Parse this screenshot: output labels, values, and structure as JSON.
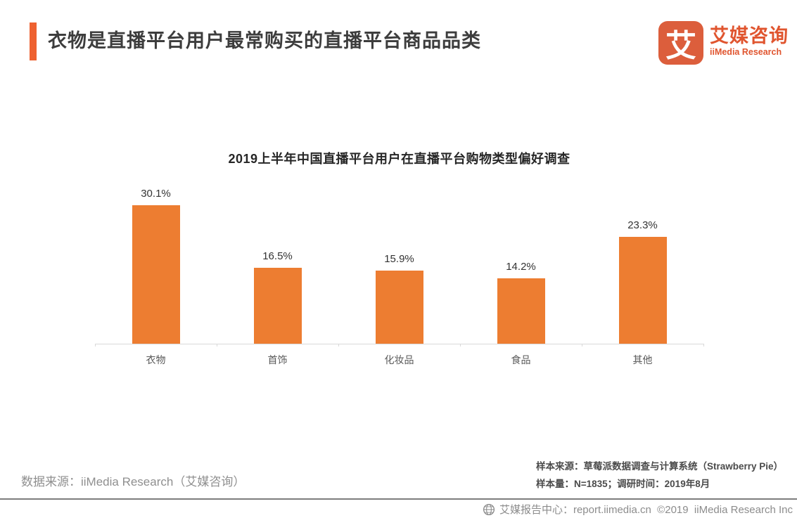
{
  "header": {
    "title": "衣物是直播平台用户最常购买的直播平台商品品类",
    "logo": {
      "glyph": "艾",
      "brand_cn": "艾媒咨询",
      "brand_en": "iiMedia Research"
    }
  },
  "chart_data": {
    "type": "bar",
    "title": "2019上半年中国直播平台用户在直播平台购物类型偏好调查",
    "categories": [
      "衣物",
      "首饰",
      "化妆品",
      "食品",
      "其他"
    ],
    "values": [
      30.1,
      16.5,
      15.9,
      14.2,
      23.3
    ],
    "value_labels": [
      "30.1%",
      "16.5%",
      "15.9%",
      "14.2%",
      "23.3%"
    ],
    "xlabel": "",
    "ylabel": "",
    "ylim": [
      0,
      32
    ],
    "grid": false,
    "legend": "none"
  },
  "footer": {
    "data_source": "数据来源：iiMedia Research（艾媒咨询）",
    "sample_source": "样本来源：草莓派数据调查与计算系统（Strawberry Pie）",
    "sample_info": "样本量：N=1835；调研时间：2019年8月",
    "report_center": "艾媒报告中心：report.iimedia.cn  ©2019  iiMedia Research Inc"
  },
  "colors": {
    "bar": "#ED7D31",
    "accent_bar": "#EE6130",
    "logo_square": "#DC5E3C",
    "brand_text": "#E0552F",
    "axis_line": "#D9D9D9"
  }
}
